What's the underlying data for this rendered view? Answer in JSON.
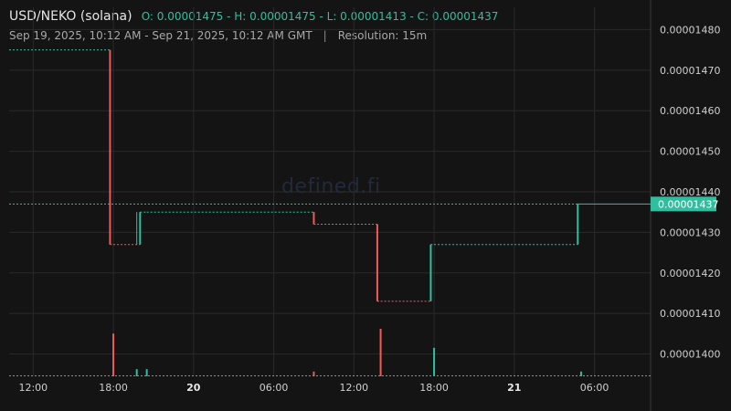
{
  "header": {
    "pair": "USD/NEKO (solana)",
    "ohlc_text": "O: 0.00001475 - H: 0.00001475 - L: 0.00001413 - C: 0.00001437",
    "range": "Sep 19, 2025, 10:12 AM - Sep 21, 2025, 10:12 AM GMT",
    "separator": "|",
    "resolution": "Resolution: 15m"
  },
  "watermark": "defined.fi",
  "colors": {
    "background": "#141414",
    "grid": "#2a2a2a",
    "up": "#2fbf9f",
    "down": "#f05a5a",
    "axis_text": "#cfcfcf",
    "price_label_bg": "#2fbf9f"
  },
  "chart_data": {
    "type": "line",
    "series": [
      {
        "values": [
          {
            "t": "2025-09-19T10:12",
            "price": 1.475e-05
          },
          {
            "t": "2025-09-19T17:45",
            "price": 1.475e-05
          },
          {
            "t": "2025-09-19T18:00",
            "price": 1.427e-05
          },
          {
            "t": "2025-09-19T20:00",
            "price": 1.427e-05
          },
          {
            "t": "2025-09-19T20:30",
            "price": 1.435e-05
          },
          {
            "t": "2025-09-20T09:00",
            "price": 1.435e-05
          },
          {
            "t": "2025-09-20T09:15",
            "price": 1.432e-05
          },
          {
            "t": "2025-09-20T13:45",
            "price": 1.432e-05
          },
          {
            "t": "2025-09-20T14:00",
            "price": 1.413e-05
          },
          {
            "t": "2025-09-20T17:45",
            "price": 1.413e-05
          },
          {
            "t": "2025-09-20T18:00",
            "price": 1.427e-05
          },
          {
            "t": "2025-09-21T04:45",
            "price": 1.427e-05
          },
          {
            "t": "2025-09-21T05:00",
            "price": 1.437e-05
          },
          {
            "t": "2025-09-21T10:12",
            "price": 1.437e-05
          }
        ]
      }
    ],
    "wicks": [
      {
        "t": "2025-09-19T19:45",
        "high": 1.435e-05,
        "low": 1.427e-05
      }
    ],
    "volume_bars": [
      {
        "t": "2025-09-19T18:00",
        "level": 0.9,
        "dir": "down"
      },
      {
        "t": "2025-09-19T19:45",
        "level": 0.15,
        "dir": "up"
      },
      {
        "t": "2025-09-19T20:30",
        "level": 0.15,
        "dir": "up"
      },
      {
        "t": "2025-09-20T09:00",
        "level": 0.1,
        "dir": "down"
      },
      {
        "t": "2025-09-20T14:00",
        "level": 1.0,
        "dir": "down"
      },
      {
        "t": "2025-09-20T18:00",
        "level": 0.6,
        "dir": "up"
      },
      {
        "t": "2025-09-21T05:00",
        "level": 0.1,
        "dir": "up"
      }
    ],
    "y_ticks": [
      "0.00001480",
      "0.00001470",
      "0.00001460",
      "0.00001450",
      "0.00001440",
      "0.00001430",
      "0.00001420",
      "0.00001410",
      "0.00001400"
    ],
    "ylim": [
      1.3945e-05,
      1.4855e-05
    ],
    "x_ticks": [
      {
        "label": "12:00",
        "t": "2025-09-19T12:00",
        "bold": false
      },
      {
        "label": "18:00",
        "t": "2025-09-19T18:00",
        "bold": false
      },
      {
        "label": "20",
        "t": "2025-09-20T00:00",
        "bold": true
      },
      {
        "label": "06:00",
        "t": "2025-09-20T06:00",
        "bold": false
      },
      {
        "label": "12:00",
        "t": "2025-09-20T12:00",
        "bold": false
      },
      {
        "label": "18:00",
        "t": "2025-09-20T18:00",
        "bold": false
      },
      {
        "label": "21",
        "t": "2025-09-21T00:00",
        "bold": true
      },
      {
        "label": "06:00",
        "t": "2025-09-21T06:00",
        "bold": false
      }
    ],
    "xlim": [
      "2025-09-19T10:12",
      "2025-09-21T10:12"
    ],
    "current_price": "0.00001437",
    "current_price_value": 1.437e-05,
    "grid": true
  }
}
